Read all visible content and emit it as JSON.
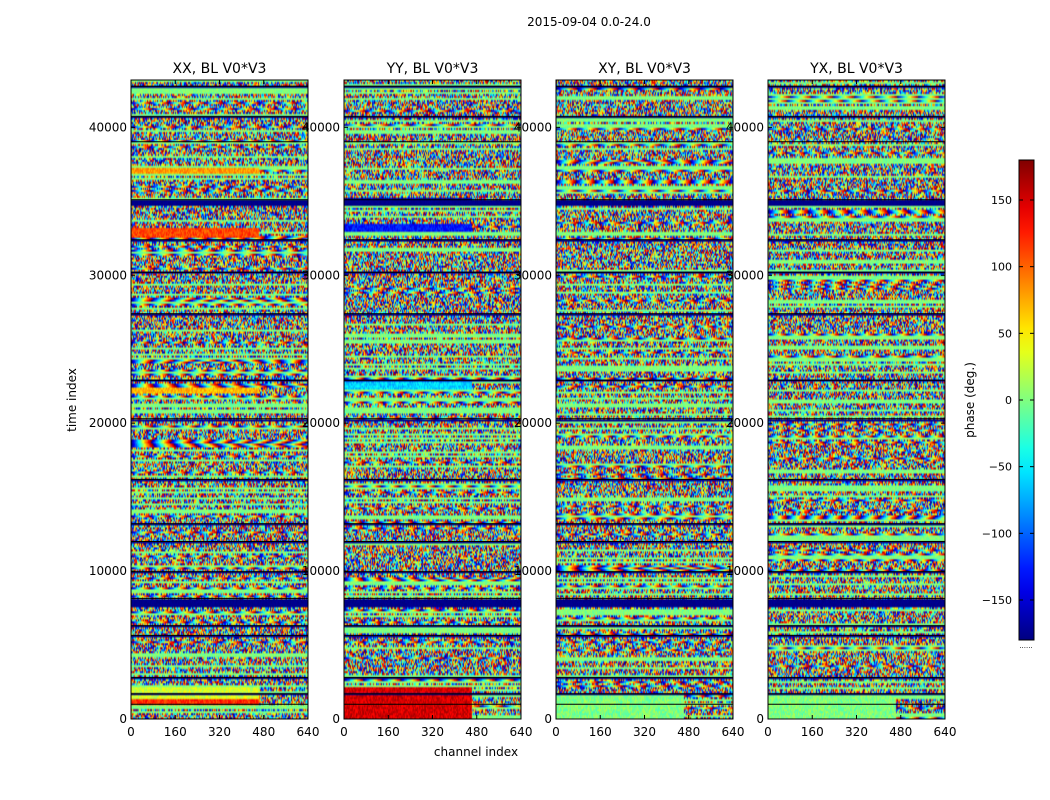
{
  "chart_data": {
    "type": "heatmap",
    "title": "2015-09-04 0.0-24.0",
    "xlabel": "channel index",
    "ylabel": "time index",
    "xlim": [
      0,
      640
    ],
    "ylim": [
      0,
      43200
    ],
    "x_ticks": [
      0,
      160,
      320,
      480,
      640
    ],
    "y_ticks": [
      0,
      10000,
      20000,
      30000,
      40000
    ],
    "panels": [
      {
        "title": "XX, BL V0*V3",
        "pol": "XX"
      },
      {
        "title": "YY, BL V0*V3",
        "pol": "YY"
      },
      {
        "title": "XY, BL V0*V3",
        "pol": "XY"
      },
      {
        "title": "YX, BL V0*V3",
        "pol": "YX"
      }
    ],
    "colorbar": {
      "label": "phase (deg.)",
      "range": [
        -180,
        180
      ],
      "ticks": [
        -150,
        -100,
        -50,
        0,
        50,
        100,
        150
      ],
      "tick_labels": [
        "−150",
        "−100",
        "−50",
        "0",
        "50",
        "100",
        "150"
      ],
      "colormap": "jet"
    },
    "flagged_time_bands": [
      [
        42700,
        42780
      ],
      [
        40600,
        40720
      ],
      [
        38950,
        39020
      ],
      [
        34700,
        35100
      ],
      [
        32300,
        32400
      ],
      [
        30100,
        30200
      ],
      [
        27300,
        27400
      ],
      [
        22800,
        22900
      ],
      [
        20150,
        20300
      ],
      [
        16100,
        16200
      ],
      [
        13100,
        13200
      ],
      [
        11900,
        12000
      ],
      [
        9850,
        9950
      ],
      [
        7600,
        8150
      ],
      [
        6200,
        6300
      ],
      [
        5500,
        5650
      ],
      [
        2700,
        2800
      ],
      [
        1600,
        1700
      ],
      [
        900,
        1000
      ]
    ]
  }
}
